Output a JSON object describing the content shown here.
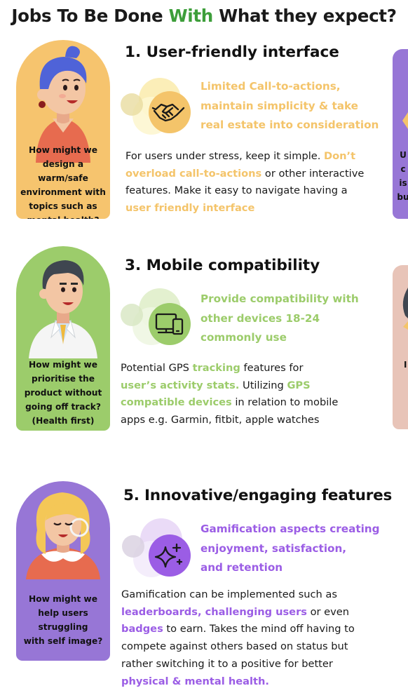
{
  "title": {
    "before": "Jobs To Be Done ",
    "accent": "With",
    "after": " What they expect?"
  },
  "colors": {
    "accent_green": "#3d9e3a",
    "yellow": "#f4c46a",
    "green": "#9ccc6b",
    "purple": "#9b5de5",
    "card_yellow": "#f6c46e",
    "card_green": "#9ccc6b",
    "card_purple": "#9776d6"
  },
  "sections": [
    {
      "heading": "1. User-friendly interface",
      "icon": "handshake-icon",
      "callout": [
        "Limited Call-to-actions,",
        "maintain simplicity & take",
        "real estate into consideration"
      ],
      "question": [
        "How might we",
        "design a warm/safe",
        "environment with",
        "topics such as",
        "mental health?"
      ],
      "body": [
        {
          "t": "For users under stress, keep it simple. ",
          "h": false
        },
        {
          "t": "Don’t",
          "h": true
        },
        {
          "t": "overload call-to-actions",
          "h": true
        },
        {
          "t": " or other interactive",
          "h": false
        },
        {
          "t": "features. Make it easy to navigate having a",
          "h": false
        },
        {
          "t": "user friendly interface",
          "h": true
        }
      ]
    },
    {
      "heading": "3. Mobile compatibility",
      "icon": "devices-icon",
      "callout": [
        "Provide compatibility with",
        "other devices 18-24",
        "commonly use"
      ],
      "question": [
        "How might we",
        "prioritise the",
        "product without",
        "going off track?",
        "(Health first)"
      ],
      "body": [
        {
          "t": "Potential GPS ",
          "h": false
        },
        {
          "t": "tracking",
          "h": true
        },
        {
          "t": " features for",
          "h": false
        },
        {
          "t": "user’s activity stats.",
          "h": true
        },
        {
          "t": " Utilizing ",
          "h": false
        },
        {
          "t": "GPS",
          "h": true
        },
        {
          "t": "compatible devices",
          "h": true
        },
        {
          "t": " in relation to mobile",
          "h": false
        },
        {
          "t": "apps e.g. Garmin, fitbit, apple watches",
          "h": false
        }
      ]
    },
    {
      "heading": "5. Innovative/engaging features",
      "icon": "sparkles-icon",
      "callout": [
        "Gamification aspects creating",
        "enjoyment, satisfaction,",
        "and retention"
      ],
      "question": [
        "How might we",
        "help users",
        "struggling",
        "with self image?"
      ],
      "body": [
        {
          "t": "Gamification can be implemented such as",
          "h": false
        },
        {
          "t": "leaderboards, challenging users",
          "h": true
        },
        {
          "t": " or even",
          "h": false
        },
        {
          "t": "badges",
          "h": true
        },
        {
          "t": " to earn. Takes the mind off having to",
          "h": false
        },
        {
          "t": "compete against others based on status but",
          "h": false
        },
        {
          "t": "rather switching it to a positive for better",
          "h": false
        },
        {
          "t": "physical & mental health.",
          "h": true
        }
      ]
    }
  ],
  "edge_text": [
    "U",
    "c",
    "is",
    "bu"
  ]
}
